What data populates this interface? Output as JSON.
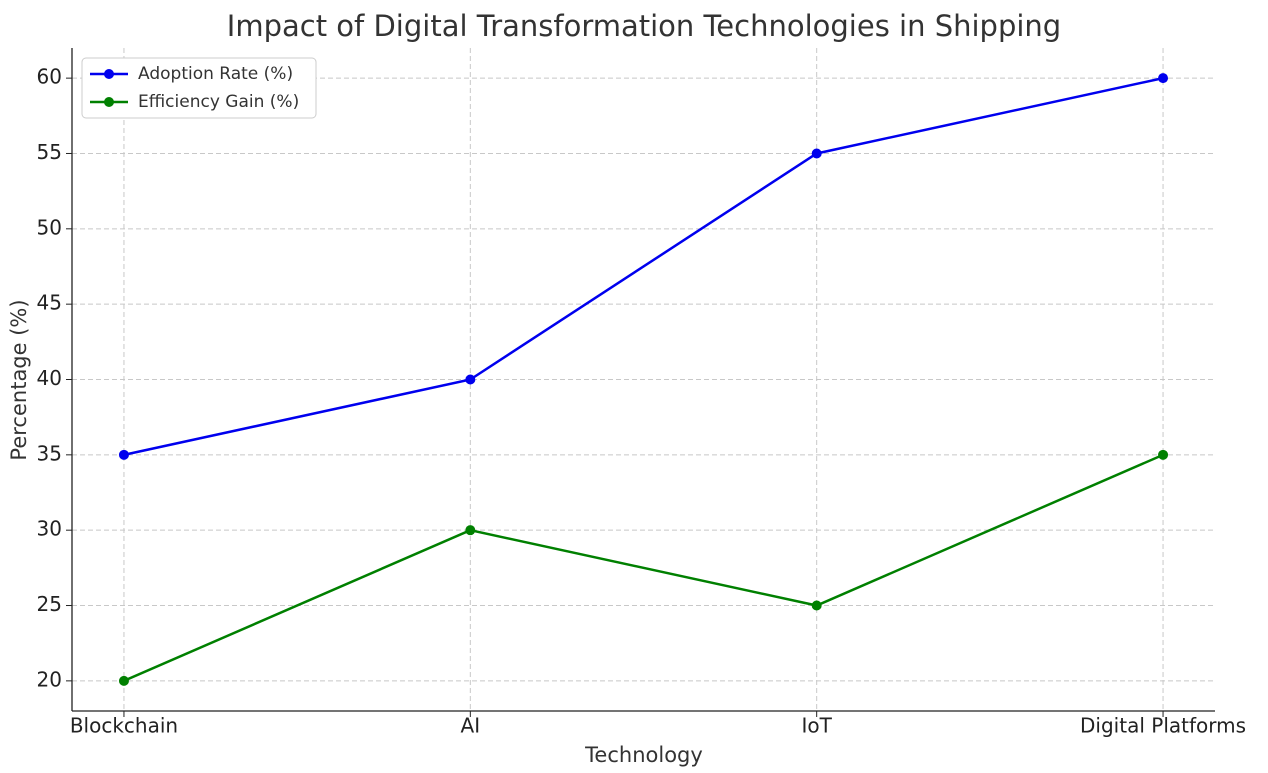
{
  "chart_data": {
    "type": "line",
    "title": "Impact of Digital Transformation Technologies in Shipping",
    "x_label": "Technology",
    "y_label": "Percentage (%)",
    "categories": [
      "Blockchain",
      "AI",
      "IoT",
      "Digital Platforms"
    ],
    "series": [
      {
        "name": "Adoption Rate (%)",
        "color": "#0000ee",
        "values": [
          35,
          40,
          55,
          60
        ]
      },
      {
        "name": "Efficiency Gain (%)",
        "color": "#008000",
        "values": [
          20,
          30,
          25,
          35
        ]
      }
    ],
    "ylim": [
      18,
      62
    ],
    "yticks": [
      20,
      25,
      30,
      35,
      40,
      45,
      50,
      55,
      60
    ],
    "grid": true,
    "legend": "upper-left"
  }
}
